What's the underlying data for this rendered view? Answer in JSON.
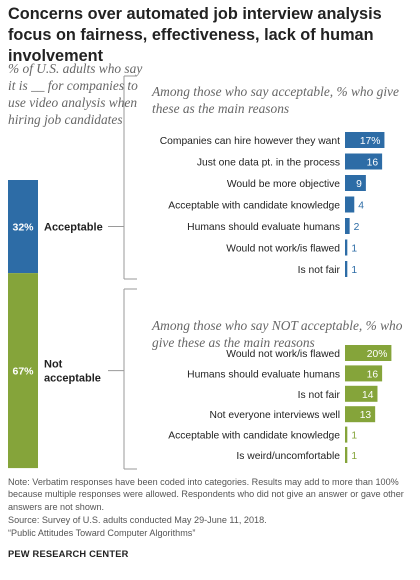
{
  "title": "Concerns over automated job interview analysis focus on fairness, effectiveness, lack of human involvement",
  "lead": "% of U.S. adults who say it is __ for companies to use video analysis when hiring job candidates",
  "subhead_acceptable": "Among those who say acceptable, % who give these as the main reasons",
  "subhead_not_acceptable": "Among those who say NOT acceptable, % who give these as the main reasons",
  "colors": {
    "acceptable": "#2d6ca6",
    "not_acceptable": "#85a43a",
    "bracket": "#9a9a9a"
  },
  "chart_data": [
    {
      "type": "bar",
      "orientation": "vertical-stacked",
      "categories": [
        "Acceptable",
        "Not acceptable"
      ],
      "values": [
        32,
        67
      ],
      "value_labels": [
        "32%",
        "67%"
      ],
      "label_lines": [
        [
          "Acceptable"
        ],
        [
          "Not",
          "acceptable"
        ]
      ]
    },
    {
      "type": "bar",
      "orientation": "horizontal",
      "group": "Acceptable",
      "categories": [
        "Companies can hire however they want",
        "Just one data pt. in the process",
        "Would be more objective",
        "Acceptable with candidate knowledge",
        "Humans should evaluate humans",
        "Would not work/is flawed",
        "Is not fair"
      ],
      "values": [
        17,
        16,
        9,
        4,
        2,
        1,
        1
      ],
      "value_labels": [
        "17%",
        "16",
        "9",
        "4",
        "2",
        "1",
        "1"
      ]
    },
    {
      "type": "bar",
      "orientation": "horizontal",
      "group": "Not acceptable",
      "categories": [
        "Would not work/is flawed",
        "Humans should evaluate humans",
        "Is not fair",
        "Not everyone interviews well",
        "Acceptable with candidate knowledge",
        "Is weird/uncomfortable"
      ],
      "values": [
        20,
        16,
        14,
        13,
        1,
        1
      ],
      "value_labels": [
        "20%",
        "16",
        "14",
        "13",
        "1",
        "1"
      ]
    }
  ],
  "note": "Note: Verbatim responses have been coded into categories. Results may add to more than 100% because multiple responses were allowed. Respondents who did not give an answer or gave other answers are not shown.",
  "source": "Source: Survey of U.S. adults conducted May 29-June 11, 2018.",
  "report": "“Public Attitudes Toward Computer Algorithms”",
  "org": "PEW RESEARCH CENTER"
}
